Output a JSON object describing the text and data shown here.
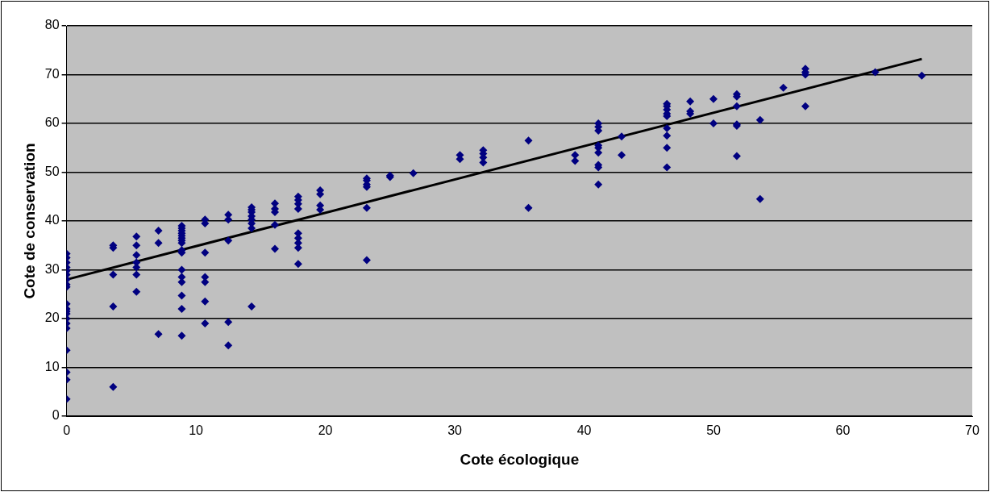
{
  "chart_data": {
    "type": "scatter",
    "xlabel": "Cote écologique",
    "ylabel": "Cote de conservation",
    "xlim": [
      0,
      70
    ],
    "xticks": [
      0,
      10,
      20,
      30,
      40,
      50,
      60,
      70
    ],
    "ylim": [
      0,
      80
    ],
    "yticks": [
      0,
      10,
      20,
      30,
      40,
      50,
      60,
      70,
      80
    ],
    "grid": "y",
    "legend": false,
    "series": [
      {
        "color": "#000080",
        "marker": "diamond",
        "x": [
          0,
          0,
          0,
          0,
          0,
          0,
          0,
          0,
          0,
          0,
          0,
          0,
          0,
          0,
          0,
          0,
          0,
          0,
          0,
          0,
          3.6,
          3.6,
          3.6,
          3.6,
          3.6,
          5.4,
          5.4,
          5.4,
          5.4,
          5.4,
          5.4,
          5.4,
          7.1,
          7.1,
          7.1,
          8.9,
          8.9,
          8.9,
          8.9,
          8.9,
          8.9,
          8.9,
          8.9,
          8.9,
          8.9,
          8.9,
          8.9,
          8.9,
          8.9,
          8.9,
          8.9,
          10.7,
          10.7,
          10.7,
          10.7,
          10.7,
          10.7,
          10.7,
          12.5,
          12.5,
          12.5,
          12.5,
          12.5,
          14.3,
          14.3,
          14.3,
          14.3,
          14.3,
          14.3,
          14.3,
          14.3,
          16.1,
          16.1,
          16.1,
          16.1,
          16.1,
          17.9,
          17.9,
          17.9,
          17.9,
          17.9,
          17.9,
          17.9,
          17.9,
          17.9,
          19.6,
          19.6,
          19.6,
          19.6,
          23.2,
          23.2,
          23.2,
          23.2,
          23.2,
          23.2,
          25,
          25,
          26.8,
          30.4,
          30.4,
          32.2,
          32.2,
          32.2,
          32.2,
          35.7,
          35.7,
          39.3,
          39.3,
          41.1,
          41.1,
          41.1,
          41.1,
          41.1,
          41.1,
          41.1,
          41.1,
          41.1,
          42.9,
          42.9,
          46.4,
          46.4,
          46.4,
          46.4,
          46.4,
          46.4,
          46.4,
          46.4,
          46.4,
          48.2,
          48.2,
          48.2,
          50,
          50,
          51.8,
          51.8,
          51.8,
          51.8,
          51.8,
          51.8,
          53.6,
          53.6,
          55.4,
          57.1,
          57.1,
          57.1,
          57.1,
          62.5,
          66.1
        ],
        "values": [
          33.3,
          32.5,
          31.5,
          30.5,
          29.8,
          29,
          28,
          27,
          26.5,
          23,
          22,
          21.5,
          21,
          20,
          19,
          18,
          13.5,
          9,
          7.5,
          3.5,
          35,
          34.5,
          29,
          22.5,
          6,
          36.8,
          35,
          33,
          31.5,
          30.5,
          29,
          25.5,
          38,
          35.5,
          16.8,
          39,
          38.5,
          38,
          37.5,
          37,
          36.5,
          36,
          35.5,
          34,
          33.5,
          30,
          28.5,
          27.5,
          24.7,
          22,
          16.5,
          40.3,
          39.5,
          33.5,
          28.5,
          27.5,
          23.5,
          19,
          41.3,
          40.3,
          36,
          19.3,
          14.5,
          42.8,
          42.3,
          41.8,
          41,
          40.3,
          39.5,
          38.5,
          22.5,
          43.6,
          42.5,
          41.8,
          39.2,
          34.3,
          45,
          44.3,
          43.5,
          42.5,
          37.5,
          36.5,
          35.5,
          34.5,
          31.2,
          46.3,
          45.5,
          43.2,
          42.3,
          48.7,
          48.3,
          47.5,
          47,
          42.7,
          32,
          49.3,
          49,
          49.8,
          53.5,
          52.7,
          54.5,
          53.8,
          53,
          52,
          56.5,
          42.7,
          53.5,
          52.3,
          60,
          59.3,
          58.5,
          55.5,
          55,
          54,
          51.5,
          51,
          47.5,
          57.3,
          53.5,
          64,
          63.5,
          62.8,
          62,
          61.5,
          59,
          57.5,
          55,
          51,
          64.5,
          62.5,
          62,
          65,
          60,
          66,
          65.5,
          63.5,
          59.8,
          59.5,
          53.3,
          60.7,
          44.5,
          67.3,
          71.2,
          70.5,
          70,
          63.5,
          70.5,
          69.8
        ]
      },
      {
        "type": "line",
        "color": "#000000",
        "marker": "none",
        "x": [
          0,
          66.1
        ],
        "values": [
          28,
          73.2
        ]
      }
    ]
  }
}
